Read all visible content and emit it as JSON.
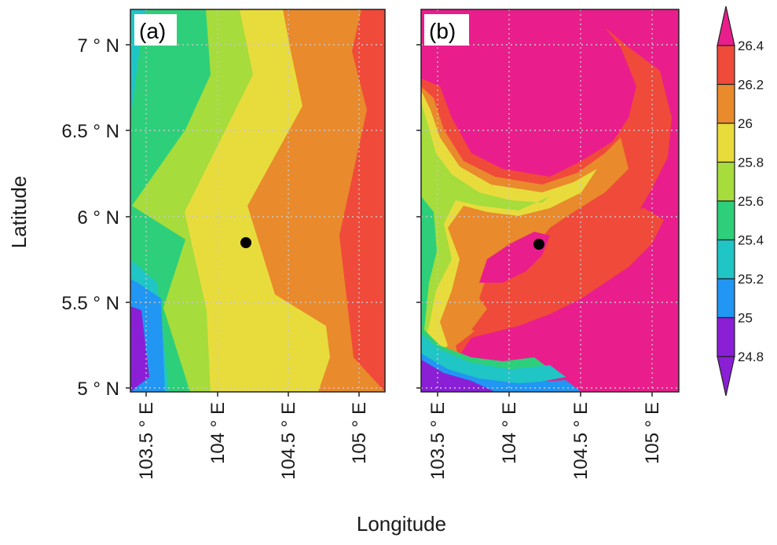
{
  "figure": {
    "xlabel": "Longitude",
    "ylabel": "Latitude",
    "panels": [
      {
        "id": "a",
        "label": "(a)"
      },
      {
        "id": "b",
        "label": "(b)"
      }
    ],
    "lat_ticks": [
      "7 ° N",
      "6.5 ° N",
      "6 ° N",
      "5.5 ° N",
      "5 ° N"
    ],
    "lon_ticks": [
      "103.5 ° E",
      "104 ° E",
      "104.5 ° E",
      "105 ° E"
    ],
    "colorbar_labels": [
      "26.4",
      "26.2",
      "26",
      "25.8",
      "25.6",
      "25.4",
      "25.2",
      "25",
      "24.8"
    ],
    "colorbar_colors": [
      "#e91e8c",
      "#f04a3a",
      "#e98a2c",
      "#e8dc3c",
      "#a6dc3c",
      "#2ecf7a",
      "#20c5c5",
      "#2196f3",
      "#8a1fd6"
    ],
    "marker": {
      "name": "station",
      "lon": 104.2,
      "lat": 5.84
    }
  },
  "chart_data": {
    "type": "heatmap",
    "xlabel": "Longitude",
    "ylabel": "Latitude",
    "xlim": [
      103.4,
      105.2
    ],
    "ylim": [
      4.95,
      7.2
    ],
    "colorbar": {
      "levels": [
        24.8,
        25,
        25.2,
        25.4,
        25.6,
        25.8,
        26,
        26.2,
        26.4
      ],
      "extend": "both"
    },
    "point": {
      "lon": 104.2,
      "lat": 5.84
    }
  }
}
